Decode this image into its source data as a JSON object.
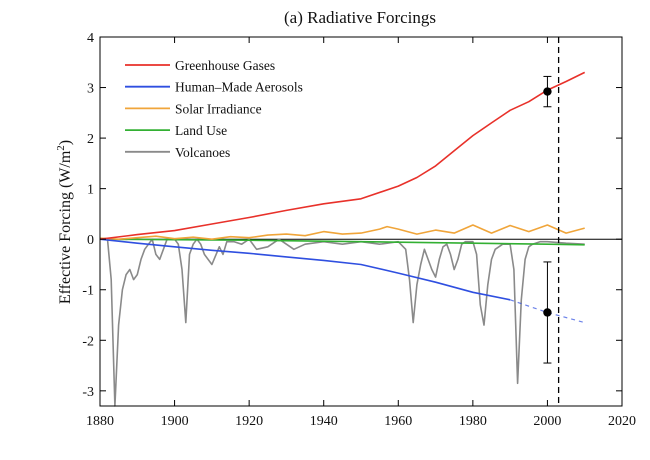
{
  "chart_data": {
    "type": "line",
    "title": "(a)  Radiative Forcings",
    "xlabel": "",
    "ylabel": "Effective Forcing (W/m",
    "ylabel_sup": "2",
    "ylabel_close": ")",
    "xlim": [
      1880,
      2020
    ],
    "ylim": [
      -3.3,
      4
    ],
    "xticks": [
      1880,
      1900,
      1920,
      1940,
      1960,
      1980,
      2000,
      2020
    ],
    "yticks": [
      4,
      3,
      2,
      1,
      0,
      -1,
      -2,
      -3
    ],
    "grid": false,
    "legend_position": "top-left",
    "zero_line": true,
    "dashed_vertical_line": 2003,
    "series": [
      {
        "name": "Greenhouse Gases",
        "color": "#e8312a",
        "x": [
          1880,
          1890,
          1900,
          1910,
          1920,
          1930,
          1940,
          1950,
          1960,
          1965,
          1970,
          1975,
          1980,
          1985,
          1990,
          1995,
          2000,
          2005,
          2010
        ],
        "y": [
          0.0,
          0.09,
          0.17,
          0.3,
          0.43,
          0.57,
          0.7,
          0.8,
          1.05,
          1.22,
          1.45,
          1.75,
          2.05,
          2.3,
          2.55,
          2.72,
          2.95,
          3.12,
          3.3
        ]
      },
      {
        "name": "Human–Made Aerosols",
        "color": "#2f4fe0",
        "x": [
          1880,
          1890,
          1900,
          1910,
          1920,
          1930,
          1940,
          1950,
          1960,
          1970,
          1980,
          1990
        ],
        "y": [
          0.0,
          -0.08,
          -0.15,
          -0.22,
          -0.28,
          -0.35,
          -0.42,
          -0.5,
          -0.67,
          -0.85,
          -1.05,
          -1.2
        ]
      },
      {
        "name": "Solar Irradiance",
        "color": "#f0a53a",
        "x": [
          1880,
          1885,
          1890,
          1895,
          1900,
          1905,
          1910,
          1915,
          1920,
          1925,
          1930,
          1935,
          1940,
          1945,
          1950,
          1955,
          1957,
          1960,
          1965,
          1970,
          1975,
          1980,
          1985,
          1990,
          1995,
          2000,
          2005,
          2010
        ],
        "y": [
          0.02,
          0.0,
          0.03,
          0.06,
          0.01,
          0.04,
          0.0,
          0.05,
          0.03,
          0.08,
          0.1,
          0.07,
          0.15,
          0.1,
          0.12,
          0.2,
          0.25,
          0.2,
          0.1,
          0.18,
          0.12,
          0.28,
          0.12,
          0.27,
          0.15,
          0.28,
          0.12,
          0.22
        ]
      },
      {
        "name": "Land Use",
        "color": "#33b033",
        "x": [
          1880,
          1900,
          1920,
          1940,
          1960,
          1980,
          2000,
          2010
        ],
        "y": [
          0.0,
          -0.01,
          -0.02,
          -0.04,
          -0.06,
          -0.08,
          -0.1,
          -0.11
        ]
      },
      {
        "name": "Volcanoes",
        "color": "#8a8a8a",
        "x": [
          1880,
          1882,
          1883,
          1884,
          1885,
          1886,
          1887,
          1888,
          1889,
          1890,
          1891,
          1892,
          1893,
          1894,
          1895,
          1896,
          1897,
          1898,
          1899,
          1900,
          1901,
          1902,
          1903,
          1904,
          1905,
          1906,
          1907,
          1908,
          1910,
          1912,
          1913,
          1914,
          1916,
          1918,
          1920,
          1922,
          1925,
          1928,
          1930,
          1932,
          1935,
          1940,
          1945,
          1950,
          1955,
          1960,
          1962,
          1963,
          1964,
          1965,
          1966,
          1967,
          1968,
          1969,
          1970,
          1971,
          1972,
          1973,
          1974,
          1975,
          1976,
          1977,
          1978,
          1980,
          1981,
          1982,
          1983,
          1984,
          1985,
          1986,
          1988,
          1990,
          1991,
          1992,
          1993,
          1994,
          1995,
          1996,
          1998,
          2000,
          2005,
          2010
        ],
        "y": [
          0.0,
          0.0,
          -0.8,
          -3.3,
          -1.7,
          -1.0,
          -0.7,
          -0.6,
          -0.8,
          -0.7,
          -0.4,
          -0.2,
          -0.1,
          0.0,
          -0.3,
          -0.4,
          -0.2,
          0.0,
          0.0,
          0.0,
          -0.1,
          -0.6,
          -1.65,
          -0.3,
          -0.1,
          0.0,
          -0.1,
          -0.3,
          -0.5,
          -0.15,
          -0.3,
          -0.05,
          -0.05,
          -0.1,
          0.0,
          -0.2,
          -0.15,
          0.0,
          -0.1,
          -0.2,
          -0.1,
          -0.05,
          -0.1,
          -0.05,
          -0.1,
          -0.05,
          -0.2,
          -0.8,
          -1.65,
          -0.9,
          -0.5,
          -0.2,
          -0.4,
          -0.6,
          -0.75,
          -0.4,
          -0.15,
          -0.1,
          -0.3,
          -0.6,
          -0.4,
          -0.1,
          -0.05,
          -0.05,
          -0.3,
          -1.3,
          -1.7,
          -0.9,
          -0.4,
          -0.2,
          -0.1,
          -0.1,
          -0.6,
          -2.85,
          -1.2,
          -0.4,
          -0.15,
          -0.1,
          -0.05,
          -0.05,
          -0.08,
          -0.1
        ]
      }
    ],
    "extension": {
      "series": "Human–Made Aerosols",
      "style": "dashed",
      "x": [
        1990,
        2000,
        2010
      ],
      "y": [
        -1.2,
        -1.45,
        -1.65
      ]
    },
    "error_bars": [
      {
        "x": 2000,
        "y": 2.92,
        "low": 2.62,
        "high": 3.22
      },
      {
        "x": 2000,
        "y": -1.45,
        "low": -2.45,
        "high": -0.45
      }
    ]
  }
}
